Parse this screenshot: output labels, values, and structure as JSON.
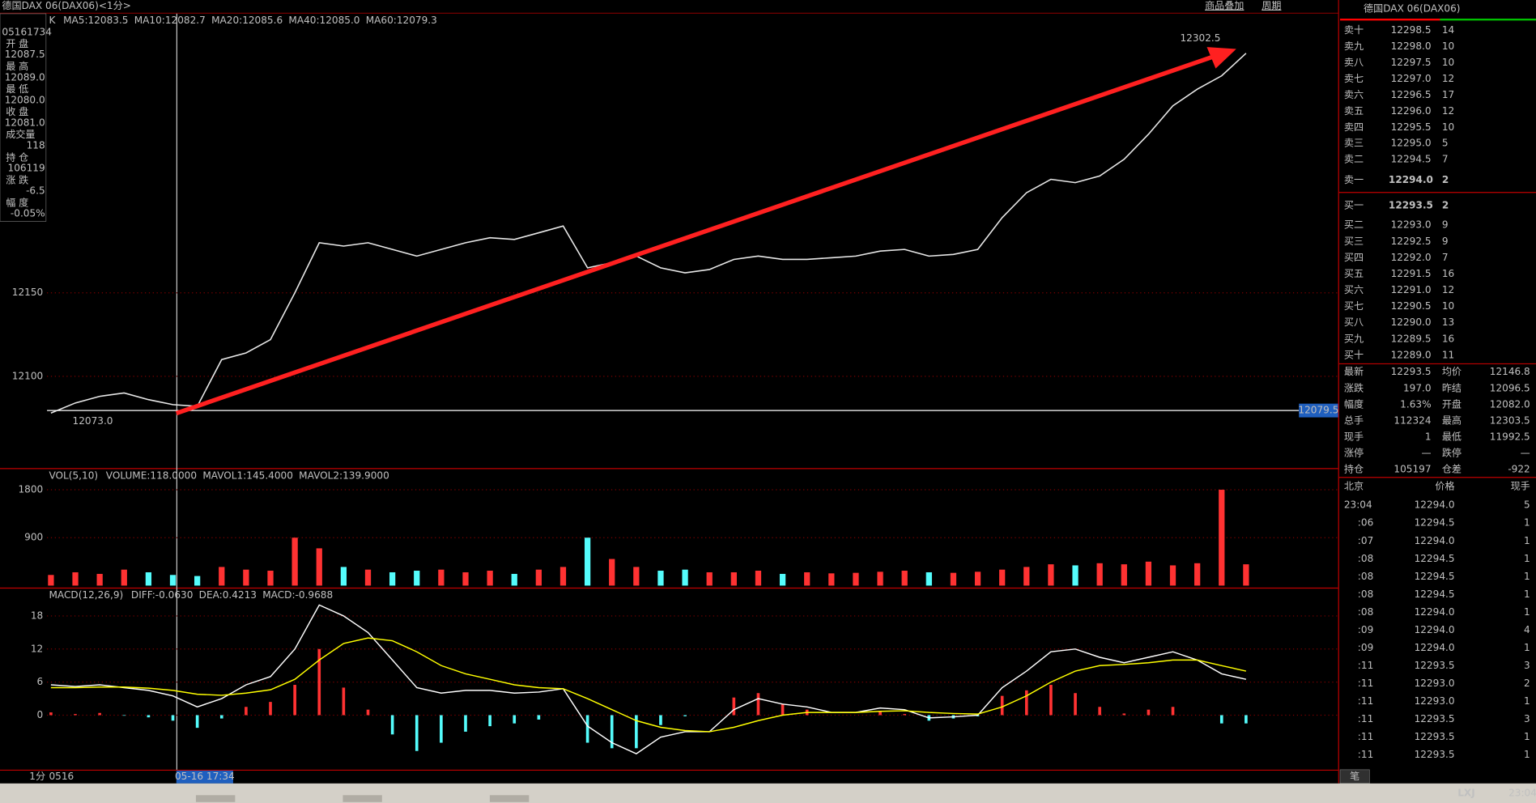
{
  "header": {
    "title": "德国DAX 06(DAX06)<1分>",
    "links": [
      "商品叠加",
      "周期"
    ]
  },
  "info_panel": {
    "time": "05161734",
    "rows": [
      [
        "开 盘",
        "12087.5"
      ],
      [
        "最 高",
        "12089.0"
      ],
      [
        "最 低",
        "12080.0"
      ],
      [
        "收 盘",
        "12081.0"
      ],
      [
        "成交量",
        "118"
      ],
      [
        "持 仓",
        "106119"
      ],
      [
        "涨 跌",
        "-6.5"
      ],
      [
        "幅 度",
        "-0.05%"
      ]
    ]
  },
  "chart_data": [
    {
      "type": "line",
      "title": "K",
      "indicators": [
        {
          "name": "MA5:12083.5",
          "color": "#ffffff"
        },
        {
          "name": "MA10:12082.7",
          "color": "#ffff00"
        },
        {
          "name": "MA20:12085.6",
          "color": "#ff00ff"
        },
        {
          "name": "MA40:12085.0",
          "color": "#00e000"
        },
        {
          "name": "MA60:12079.3",
          "color": "#8080ff"
        }
      ],
      "values": [
        12078,
        12084,
        12088,
        12090,
        12086,
        12083,
        12082,
        12110,
        12114,
        12122,
        12150,
        12180,
        12178,
        12180,
        12176,
        12172,
        12176,
        12180,
        12183,
        12182,
        12186,
        12190,
        12165,
        12168,
        12172,
        12165,
        12162,
        12164,
        12170,
        12172,
        12170,
        12170,
        12171,
        12172,
        12175,
        12176,
        12172,
        12173,
        12176,
        12195,
        12210,
        12218,
        12216,
        12220,
        12230,
        12245,
        12262,
        12272,
        12280,
        12293.5
      ],
      "color": "#e8e8e8",
      "ylim": [
        12045,
        12309
      ],
      "yticks": [
        12100,
        12150
      ],
      "grid": true,
      "annotations": [
        {
          "text": "12302.5",
          "value": 12302.5
        },
        {
          "text": "12073.0",
          "value": 12073.0
        }
      ],
      "last_line": {
        "value": 12079.5,
        "label": "12079.5"
      }
    },
    {
      "type": "bar",
      "title": "VOL(5,10)",
      "indicators": [
        {
          "name": "VOLUME:118.0000",
          "color": "#c0c0c0"
        },
        {
          "name": "MAVOL1:145.4000",
          "color": "#c0c0c0"
        },
        {
          "name": "MAVOL2:139.9000",
          "color": "#ffff00"
        }
      ],
      "values": [
        200,
        250,
        220,
        300,
        250,
        200,
        180,
        350,
        300,
        280,
        900,
        700,
        350,
        300,
        250,
        280,
        300,
        250,
        280,
        220,
        300,
        350,
        900,
        500,
        350,
        280,
        300,
        250,
        250,
        280,
        220,
        250,
        230,
        240,
        260,
        280,
        250,
        240,
        260,
        300,
        350,
        400,
        380,
        420,
        400,
        450,
        380,
        420,
        1800,
        400
      ],
      "ylim": [
        0,
        2170
      ],
      "yticks": [
        900,
        1800
      ],
      "grid": true
    },
    {
      "type": "macd",
      "title": "MACD(12,26,9)",
      "series": [
        {
          "name": "DIFF:-0.0630",
          "color": "#ffffff",
          "values": [
            5.5,
            5.2,
            5.5,
            5.0,
            4.5,
            3.5,
            1.5,
            3,
            5.5,
            7,
            12,
            20,
            18,
            15,
            10,
            5,
            4,
            4.5,
            4.5,
            4,
            4.2,
            4.8,
            -2,
            -5,
            -7,
            -4,
            -3,
            -3,
            1,
            3,
            2,
            1.5,
            0.5,
            0.5,
            1.3,
            1.0,
            -0.5,
            -0.3,
            0,
            5,
            8,
            11.5,
            12,
            10.5,
            9.5,
            10.5,
            11.5,
            10,
            7.5,
            6.5
          ]
        },
        {
          "name": "DEA:0.4213",
          "color": "#ffff00",
          "values": [
            5,
            5,
            5.1,
            5.1,
            4.9,
            4.5,
            3.8,
            3.6,
            4,
            4.6,
            6.5,
            10,
            13,
            14,
            13.5,
            11.5,
            9,
            7.5,
            6.5,
            5.5,
            5,
            4.8,
            3,
            1,
            -1,
            -2.2,
            -2.8,
            -3,
            -2.2,
            -1,
            0,
            0.5,
            0.5,
            0.5,
            0.7,
            0.8,
            0.5,
            0.3,
            0.2,
            1.5,
            3.5,
            6,
            8,
            9,
            9.2,
            9.5,
            10,
            10,
            9,
            8
          ]
        },
        {
          "name": "MACD:-0.9688",
          "color": "#ff00ff",
          "values": [
            0.5,
            0.2,
            0.4,
            -0.1,
            -0.4,
            -1,
            -2.3,
            -0.6,
            1.5,
            2.4,
            5.5,
            12,
            5,
            1,
            -3.5,
            -6.5,
            -5,
            -3,
            -2,
            -1.5,
            -0.8,
            0,
            -5,
            -6,
            -6,
            -1.8,
            -0.2,
            0,
            3.2,
            4,
            2,
            1,
            0,
            0,
            0.6,
            0.2,
            -1,
            -0.6,
            -0.2,
            3.5,
            4.5,
            5.5,
            4,
            1.5,
            0.3,
            1,
            1.5,
            0,
            -1.5,
            -1.5
          ]
        }
      ],
      "ylim": [
        -9.9,
        22.8
      ],
      "yticks": [
        0,
        6,
        12,
        18
      ],
      "grid": true
    }
  ],
  "quote": {
    "title": "德国DAX 06(DAX06)",
    "asks": [
      [
        "卖十",
        "12298.5",
        "14"
      ],
      [
        "卖九",
        "12298.0",
        "10"
      ],
      [
        "卖八",
        "12297.5",
        "10"
      ],
      [
        "卖七",
        "12297.0",
        "12"
      ],
      [
        "卖六",
        "12296.5",
        "17"
      ],
      [
        "卖五",
        "12296.0",
        "12"
      ],
      [
        "卖四",
        "12295.5",
        "10"
      ],
      [
        "卖三",
        "12295.0",
        "5"
      ],
      [
        "卖二",
        "12294.5",
        "7"
      ],
      [
        "卖一",
        "12294.0",
        "2"
      ]
    ],
    "bids": [
      [
        "买一",
        "12293.5",
        "2"
      ],
      [
        "买二",
        "12293.0",
        "9"
      ],
      [
        "买三",
        "12292.5",
        "9"
      ],
      [
        "买四",
        "12292.0",
        "7"
      ],
      [
        "买五",
        "12291.5",
        "16"
      ],
      [
        "买六",
        "12291.0",
        "12"
      ],
      [
        "买七",
        "12290.5",
        "10"
      ],
      [
        "买八",
        "12290.0",
        "13"
      ],
      [
        "买九",
        "12289.5",
        "16"
      ],
      [
        "买十",
        "12289.0",
        "11"
      ]
    ],
    "stats": [
      [
        "最新",
        "12293.5",
        "均价",
        "12146.8"
      ],
      [
        "涨跌",
        "197.0",
        "昨结",
        "12096.5"
      ],
      [
        "幅度",
        "1.63%",
        "开盘",
        "12082.0"
      ],
      [
        "总手",
        "112324",
        "最高",
        "12303.5"
      ],
      [
        "现手",
        "1",
        "最低",
        "11992.5"
      ],
      [
        "涨停",
        "—",
        "跌停",
        "—"
      ],
      [
        "持仓",
        "105197",
        "仓差",
        "-922"
      ]
    ],
    "trades": {
      "header": [
        "北京",
        "价格",
        "现手"
      ],
      "rows": [
        [
          "23:04",
          "12294.0",
          "5"
        ],
        [
          ":06",
          "12294.5",
          "1"
        ],
        [
          ":07",
          "12294.0",
          "1"
        ],
        [
          ":08",
          "12294.5",
          "1"
        ],
        [
          ":08",
          "12294.5",
          "1"
        ],
        [
          ":08",
          "12294.5",
          "1"
        ],
        [
          ":08",
          "12294.0",
          "1"
        ],
        [
          ":09",
          "12294.0",
          "4"
        ],
        [
          ":09",
          "12294.0",
          "1"
        ],
        [
          ":11",
          "12293.5",
          "3"
        ],
        [
          ":11",
          "12293.0",
          "2"
        ],
        [
          ":11",
          "12293.0",
          "1"
        ],
        [
          ":11",
          "12293.5",
          "3"
        ],
        [
          ":11",
          "12293.5",
          "1"
        ],
        [
          ":11",
          "12293.5",
          "1"
        ]
      ]
    }
  },
  "footer": {
    "period": "1分",
    "date": "0516",
    "cursor": "05-16 17:34",
    "tab": "笔",
    "brand": "LXJ",
    "time": "23:04"
  }
}
